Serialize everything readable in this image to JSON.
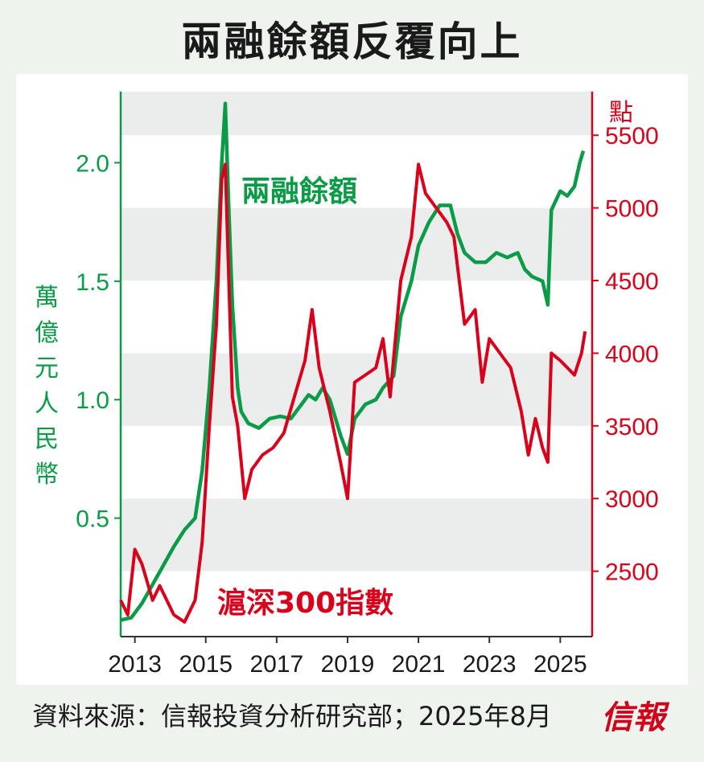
{
  "title": "兩融餘額反覆向上",
  "source": "資料來源：信報投資分析研究部；2025年8月",
  "brand": "信報",
  "colors": {
    "margin": "#0a9b46",
    "index": "#d9001b",
    "band": "#ebecec",
    "text": "#1a1a1a"
  },
  "chart_data": {
    "type": "line",
    "x_ticks": [
      "2013",
      "2015",
      "2017",
      "2019",
      "2021",
      "2023",
      "2025"
    ],
    "x_range": [
      2012.6,
      2025.9
    ],
    "y_left": {
      "label": "萬億元人民幣",
      "ticks": [
        "0.5",
        "1.0",
        "1.5",
        "2.0"
      ],
      "range": [
        0.0,
        2.3
      ]
    },
    "y_right": {
      "label": "點",
      "ticks": [
        "2500",
        "3000",
        "3500",
        "4000",
        "4500",
        "5000",
        "5500"
      ],
      "range": [
        2050,
        5800
      ]
    },
    "grid": "alternating-bands",
    "series": [
      {
        "name": "兩融餘額",
        "axis": "left",
        "color": "#0a9b46",
        "points": [
          [
            2012.6,
            0.07
          ],
          [
            2012.9,
            0.08
          ],
          [
            2013.2,
            0.14
          ],
          [
            2013.5,
            0.22
          ],
          [
            2013.8,
            0.3
          ],
          [
            2014.1,
            0.38
          ],
          [
            2014.4,
            0.45
          ],
          [
            2014.7,
            0.5
          ],
          [
            2014.9,
            0.7
          ],
          [
            2015.1,
            1.05
          ],
          [
            2015.3,
            1.5
          ],
          [
            2015.45,
            2.0
          ],
          [
            2015.55,
            2.25
          ],
          [
            2015.65,
            1.8
          ],
          [
            2015.75,
            1.4
          ],
          [
            2015.9,
            1.05
          ],
          [
            2016.0,
            0.95
          ],
          [
            2016.2,
            0.9
          ],
          [
            2016.5,
            0.88
          ],
          [
            2016.8,
            0.92
          ],
          [
            2017.1,
            0.93
          ],
          [
            2017.4,
            0.92
          ],
          [
            2017.7,
            0.98
          ],
          [
            2017.9,
            1.02
          ],
          [
            2018.1,
            1.0
          ],
          [
            2018.3,
            1.05
          ],
          [
            2018.5,
            1.0
          ],
          [
            2018.8,
            0.85
          ],
          [
            2019.0,
            0.77
          ],
          [
            2019.2,
            0.92
          ],
          [
            2019.5,
            0.98
          ],
          [
            2019.8,
            1.0
          ],
          [
            2020.0,
            1.05
          ],
          [
            2020.3,
            1.1
          ],
          [
            2020.5,
            1.35
          ],
          [
            2020.8,
            1.5
          ],
          [
            2021.0,
            1.65
          ],
          [
            2021.3,
            1.75
          ],
          [
            2021.6,
            1.82
          ],
          [
            2021.9,
            1.82
          ],
          [
            2022.1,
            1.7
          ],
          [
            2022.3,
            1.62
          ],
          [
            2022.6,
            1.58
          ],
          [
            2022.9,
            1.58
          ],
          [
            2023.2,
            1.62
          ],
          [
            2023.5,
            1.6
          ],
          [
            2023.8,
            1.62
          ],
          [
            2024.0,
            1.55
          ],
          [
            2024.2,
            1.52
          ],
          [
            2024.5,
            1.5
          ],
          [
            2024.65,
            1.4
          ],
          [
            2024.75,
            1.8
          ],
          [
            2025.0,
            1.88
          ],
          [
            2025.2,
            1.86
          ],
          [
            2025.4,
            1.9
          ],
          [
            2025.55,
            2.0
          ],
          [
            2025.65,
            2.05
          ]
        ]
      },
      {
        "name": "滬深300指數",
        "axis": "right",
        "color": "#d9001b",
        "points": [
          [
            2012.6,
            2300
          ],
          [
            2012.8,
            2200
          ],
          [
            2013.0,
            2650
          ],
          [
            2013.2,
            2550
          ],
          [
            2013.5,
            2300
          ],
          [
            2013.7,
            2400
          ],
          [
            2013.9,
            2300
          ],
          [
            2014.1,
            2200
          ],
          [
            2014.4,
            2150
          ],
          [
            2014.7,
            2300
          ],
          [
            2014.9,
            2700
          ],
          [
            2015.1,
            3500
          ],
          [
            2015.3,
            4200
          ],
          [
            2015.45,
            5200
          ],
          [
            2015.55,
            5300
          ],
          [
            2015.65,
            4500
          ],
          [
            2015.75,
            3700
          ],
          [
            2015.9,
            3500
          ],
          [
            2016.1,
            3000
          ],
          [
            2016.3,
            3200
          ],
          [
            2016.6,
            3300
          ],
          [
            2016.9,
            3350
          ],
          [
            2017.2,
            3450
          ],
          [
            2017.5,
            3700
          ],
          [
            2017.8,
            3950
          ],
          [
            2018.0,
            4300
          ],
          [
            2018.2,
            3900
          ],
          [
            2018.5,
            3600
          ],
          [
            2018.8,
            3250
          ],
          [
            2019.0,
            3000
          ],
          [
            2019.2,
            3800
          ],
          [
            2019.5,
            3850
          ],
          [
            2019.8,
            3900
          ],
          [
            2020.0,
            4100
          ],
          [
            2020.2,
            3700
          ],
          [
            2020.5,
            4500
          ],
          [
            2020.8,
            4800
          ],
          [
            2021.0,
            5300
          ],
          [
            2021.2,
            5100
          ],
          [
            2021.5,
            5000
          ],
          [
            2021.8,
            4900
          ],
          [
            2022.0,
            4800
          ],
          [
            2022.3,
            4200
          ],
          [
            2022.6,
            4300
          ],
          [
            2022.8,
            3800
          ],
          [
            2023.0,
            4100
          ],
          [
            2023.3,
            4000
          ],
          [
            2023.6,
            3900
          ],
          [
            2023.9,
            3600
          ],
          [
            2024.1,
            3300
          ],
          [
            2024.3,
            3550
          ],
          [
            2024.5,
            3350
          ],
          [
            2024.65,
            3250
          ],
          [
            2024.75,
            4000
          ],
          [
            2025.0,
            3950
          ],
          [
            2025.2,
            3900
          ],
          [
            2025.4,
            3850
          ],
          [
            2025.6,
            4000
          ],
          [
            2025.7,
            4150
          ]
        ]
      }
    ]
  }
}
